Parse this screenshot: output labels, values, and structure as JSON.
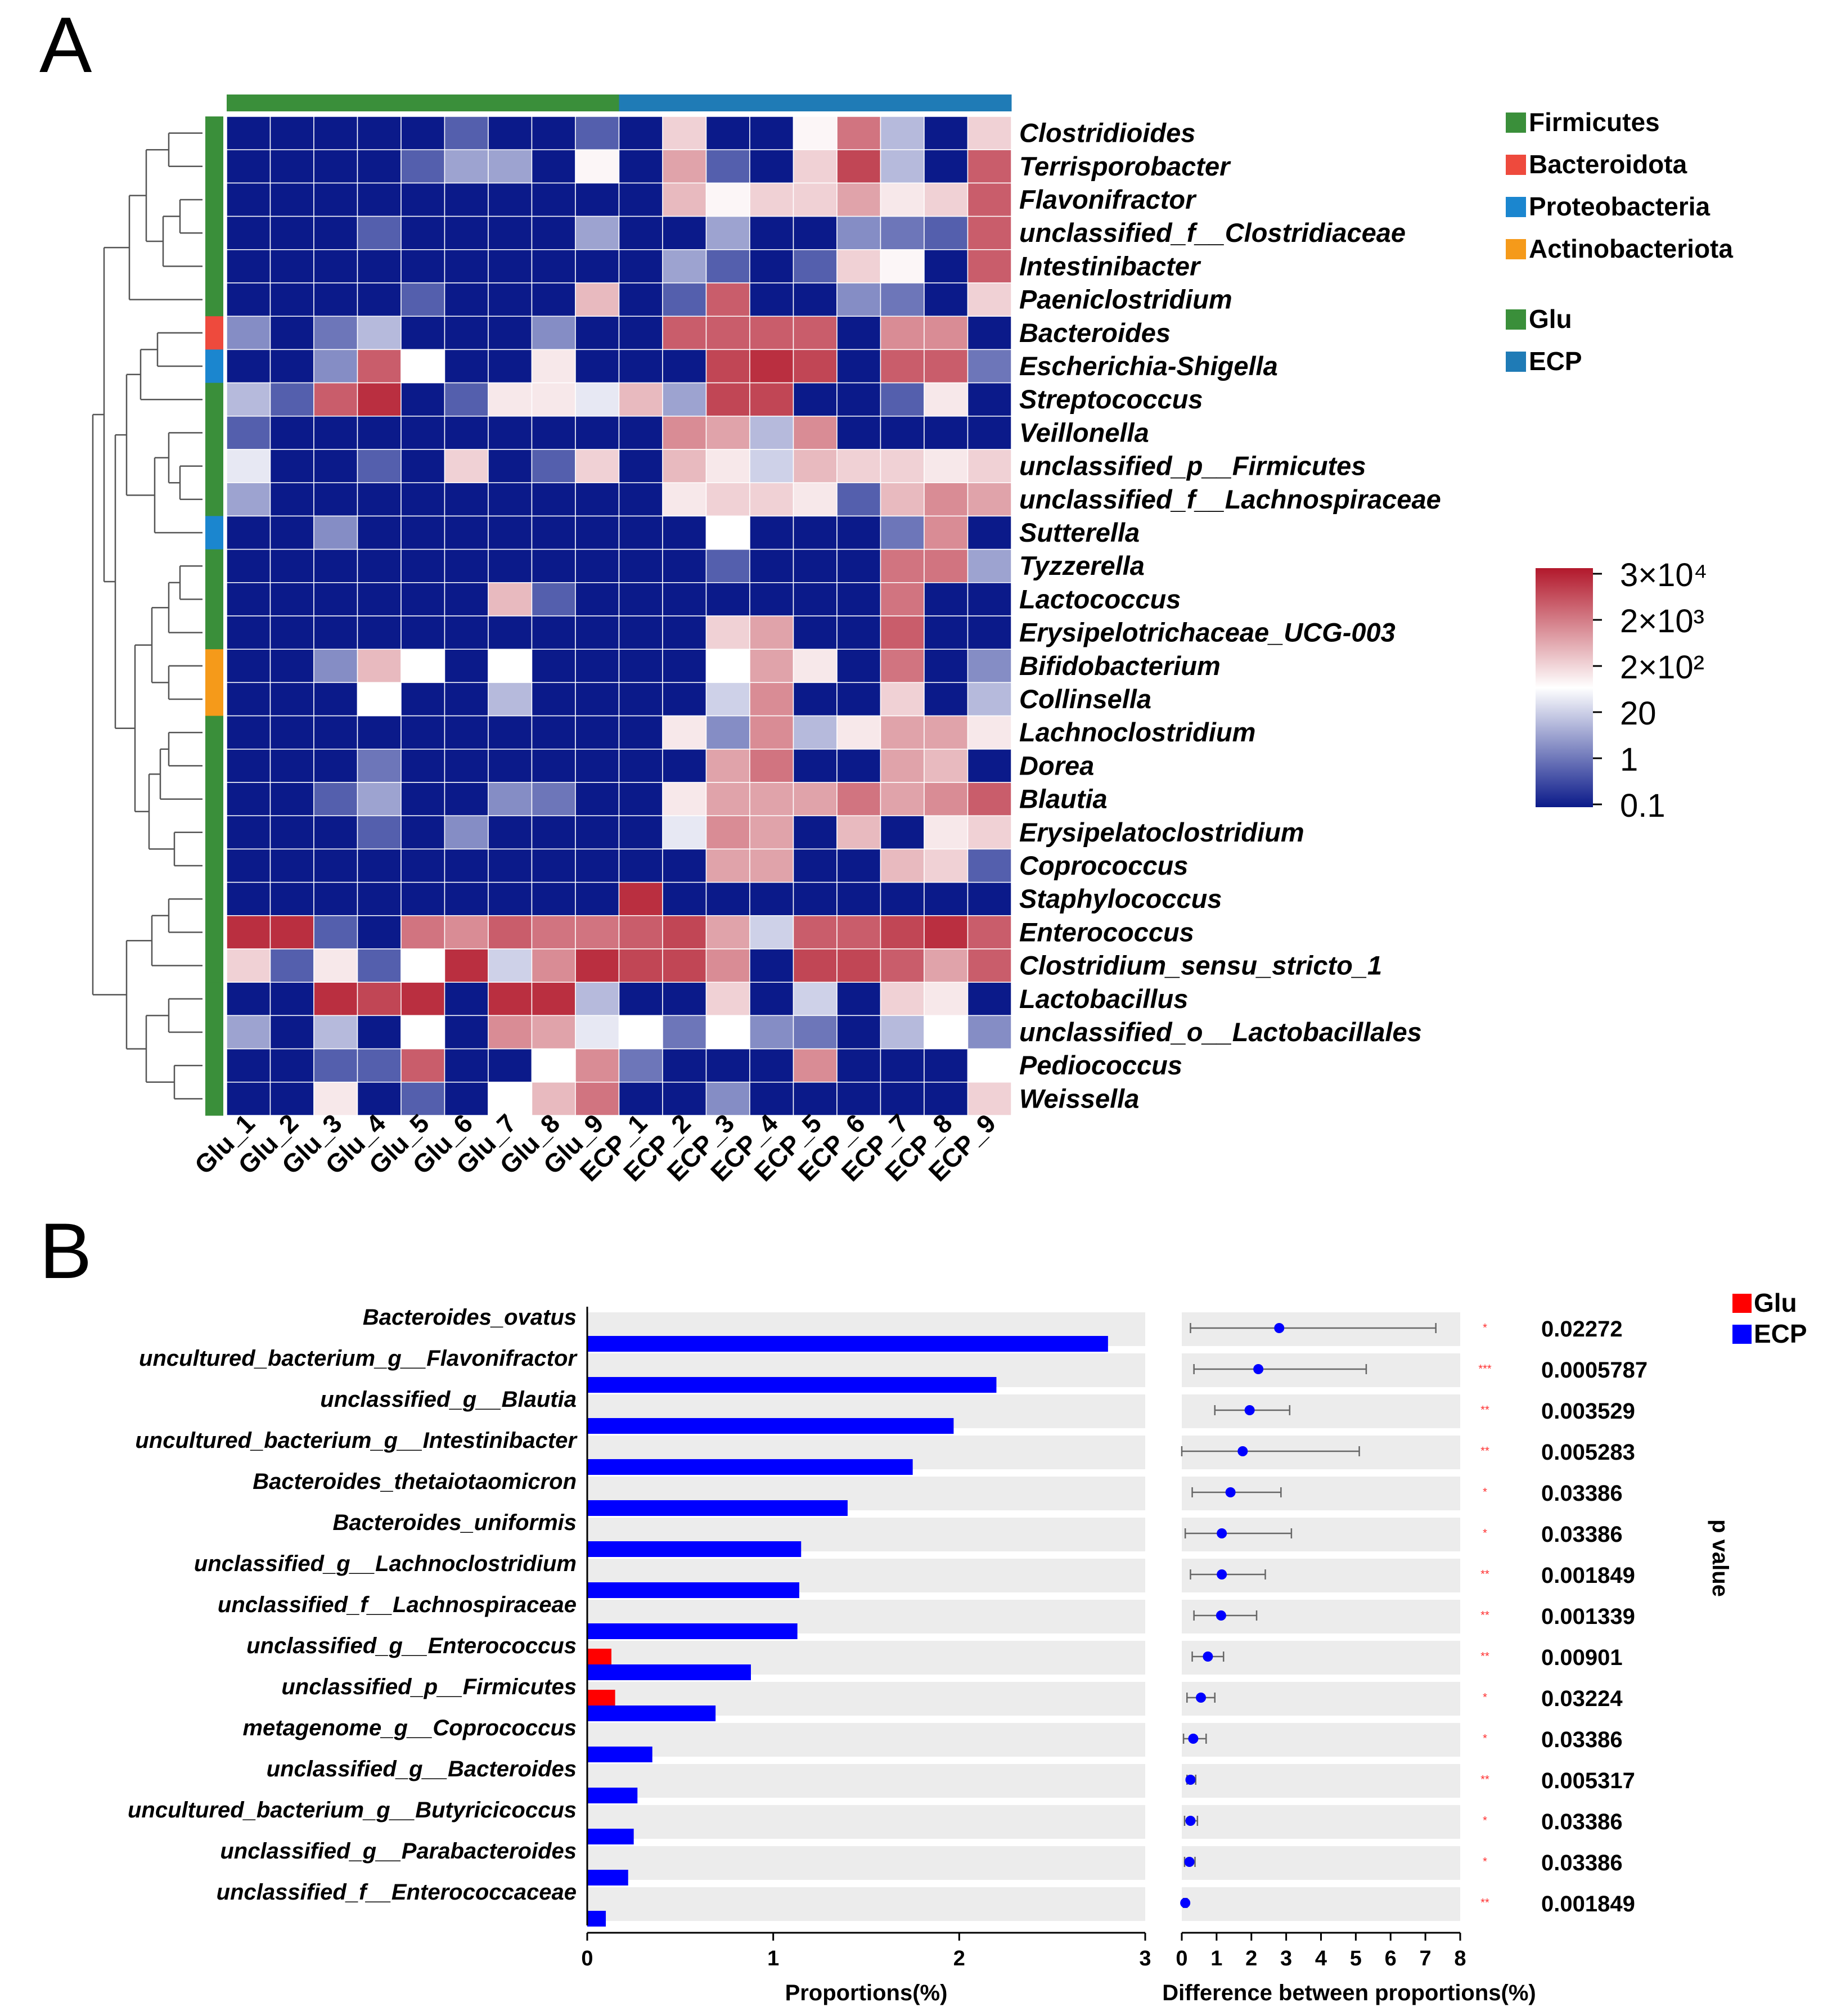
{
  "panel_a": {
    "label": "A",
    "phylum_legend": [
      {
        "name": "Firmicutes",
        "color": "#3a8f3a"
      },
      {
        "name": "Bacteroidota",
        "color": "#ee4a3d"
      },
      {
        "name": "Proteobacteria",
        "color": "#1b86cf"
      },
      {
        "name": "Actinobacteriota",
        "color": "#f59a1a"
      }
    ],
    "group_legend": [
      {
        "name": "Glu",
        "color": "#3a8f3a"
      },
      {
        "name": "ECP",
        "color": "#1f7bb6"
      }
    ],
    "color_scale": {
      "labels": [
        "3×10⁴",
        "2×10³",
        "2×10²",
        "20",
        "1",
        "0.1"
      ],
      "colors": [
        "#b2182b",
        "#ffffff",
        "#0b1a8a"
      ]
    }
  },
  "panel_b": {
    "label": "B",
    "legend": [
      {
        "name": "Glu",
        "color": "#ff0000"
      },
      {
        "name": "ECP",
        "color": "#0000ff"
      }
    ],
    "pvalue_label": "p value"
  },
  "chart_data": [
    {
      "type": "heatmap",
      "title": "",
      "columns": [
        "Glu_1",
        "Glu_2",
        "Glu_3",
        "Glu_4",
        "Glu_5",
        "Glu_6",
        "Glu_7",
        "Glu_8",
        "Glu_9",
        "ECP_1",
        "ECP_2",
        "ECP_3",
        "ECP_4",
        "ECP_5",
        "ECP_6",
        "ECP_7",
        "ECP_8",
        "ECP_9"
      ],
      "column_groups": [
        "Glu",
        "Glu",
        "Glu",
        "Glu",
        "Glu",
        "Glu",
        "Glu",
        "Glu",
        "Glu",
        "ECP",
        "ECP",
        "ECP",
        "ECP",
        "ECP",
        "ECP",
        "ECP",
        "ECP",
        "ECP"
      ],
      "rows": [
        "Clostridioides",
        "Terrisporobacter",
        "Flavonifractor",
        "unclassified_f__Clostridiaceae",
        "Intestinibacter",
        "Paeniclostridium",
        "Bacteroides",
        "Escherichia-Shigella",
        "Streptococcus",
        "Veillonella",
        "unclassified_p__Firmicutes",
        "unclassified_f__Lachnospiraceae",
        "Sutterella",
        "Tyzzerella",
        "Lactococcus",
        "Erysipelotrichaceae_UCG-003",
        "Bifidobacterium",
        "Collinsella",
        "Lachnoclostridium",
        "Dorea",
        "Blautia",
        "Erysipelatoclostridium",
        "Coprococcus",
        "Staphylococcus",
        "Enterococcus",
        "Clostridium_sensu_stricto_1",
        "Lactobacillus",
        "unclassified_o__Lactobacillales",
        "Pediococcus",
        "Weissella"
      ],
      "row_phylum": [
        "Firmicutes",
        "Firmicutes",
        "Firmicutes",
        "Firmicutes",
        "Firmicutes",
        "Firmicutes",
        "Bacteroidota",
        "Proteobacteria",
        "Firmicutes",
        "Firmicutes",
        "Firmicutes",
        "Firmicutes",
        "Proteobacteria",
        "Firmicutes",
        "Firmicutes",
        "Firmicutes",
        "Actinobacteriota",
        "Actinobacteriota",
        "Firmicutes",
        "Firmicutes",
        "Firmicutes",
        "Firmicutes",
        "Firmicutes",
        "Firmicutes",
        "Firmicutes",
        "Firmicutes",
        "Firmicutes",
        "Firmicutes",
        "Firmicutes",
        "Firmicutes"
      ],
      "scale_note": "cell value = color position 0 (0.1, dark blue) .. 0.5 (20, white) .. 1 (3x10^4, dark red)",
      "values": [
        [
          0,
          0,
          0,
          0,
          0,
          0.15,
          0,
          0,
          0.15,
          0,
          0.6,
          0,
          0,
          0.52,
          0.8,
          0.35,
          0,
          0.6
        ],
        [
          0,
          0,
          0,
          0,
          0.15,
          0.3,
          0.3,
          0,
          0.52,
          0,
          0.7,
          0.15,
          0,
          0.6,
          0.9,
          0.35,
          0,
          0.85
        ],
        [
          0,
          0,
          0,
          0,
          0,
          0,
          0,
          0,
          0,
          0,
          0.65,
          0.52,
          0.6,
          0.6,
          0.7,
          0.55,
          0.6,
          0.85
        ],
        [
          0,
          0,
          0,
          0.15,
          0,
          0,
          0,
          0,
          0.3,
          0,
          0,
          0.3,
          0,
          0,
          0.25,
          0.2,
          0.15,
          0.85
        ],
        [
          0,
          0,
          0,
          0,
          0,
          0,
          0,
          0,
          0,
          0,
          0.3,
          0.15,
          0,
          0.15,
          0.6,
          0.52,
          0,
          0.85
        ],
        [
          0,
          0,
          0,
          0,
          0.15,
          0,
          0,
          0,
          0.65,
          0,
          0.15,
          0.85,
          0,
          0,
          0.25,
          0.2,
          0,
          0.6
        ],
        [
          0.25,
          0,
          0.2,
          0.35,
          0,
          0,
          0,
          0.25,
          0,
          0,
          0.85,
          0.85,
          0.85,
          0.85,
          0,
          0.75,
          0.75,
          0
        ],
        [
          0,
          0,
          0.25,
          0.85,
          0.5,
          0,
          0,
          0.55,
          0,
          0,
          0,
          0.9,
          0.95,
          0.9,
          0,
          0.85,
          0.85,
          0.2
        ],
        [
          0.35,
          0.15,
          0.85,
          0.95,
          0,
          0.15,
          0.55,
          0.55,
          0.45,
          0.65,
          0.3,
          0.9,
          0.9,
          0,
          0,
          0.15,
          0.55,
          0
        ],
        [
          0.15,
          0,
          0,
          0,
          0,
          0,
          0,
          0,
          0,
          0,
          0.75,
          0.7,
          0.35,
          0.75,
          0,
          0,
          0,
          0
        ],
        [
          0.45,
          0,
          0,
          0.15,
          0,
          0.6,
          0,
          0.15,
          0.6,
          0,
          0.65,
          0.55,
          0.4,
          0.65,
          0.6,
          0.6,
          0.55,
          0.6
        ],
        [
          0.3,
          0,
          0,
          0,
          0,
          0,
          0,
          0,
          0,
          0,
          0.55,
          0.6,
          0.6,
          0.55,
          0.15,
          0.65,
          0.75,
          0.7
        ],
        [
          0,
          0,
          0.25,
          0,
          0,
          0,
          0,
          0,
          0,
          0,
          0,
          0.5,
          0,
          0,
          0,
          0.2,
          0.75,
          0
        ],
        [
          0,
          0,
          0,
          0,
          0,
          0,
          0,
          0,
          0,
          0,
          0,
          0.15,
          0,
          0,
          0,
          0.8,
          0.8,
          0.3
        ],
        [
          0,
          0,
          0,
          0,
          0,
          0,
          0.65,
          0.15,
          0,
          0,
          0,
          0,
          0,
          0,
          0,
          0.8,
          0,
          0
        ],
        [
          0,
          0,
          0,
          0,
          0,
          0,
          0,
          0,
          0,
          0,
          0,
          0.6,
          0.7,
          0,
          0,
          0.85,
          0,
          0
        ],
        [
          0,
          0,
          0.25,
          0.65,
          0.5,
          0,
          0.5,
          0,
          0,
          0,
          0,
          0.5,
          0.7,
          0.55,
          0,
          0.8,
          0,
          0.25
        ],
        [
          0,
          0,
          0,
          0.5,
          0,
          0,
          0.35,
          0,
          0,
          0,
          0,
          0.4,
          0.75,
          0,
          0,
          0.6,
          0,
          0.35
        ],
        [
          0,
          0,
          0,
          0,
          0,
          0,
          0,
          0,
          0,
          0,
          0.55,
          0.25,
          0.75,
          0.35,
          0.55,
          0.7,
          0.7,
          0.55
        ],
        [
          0,
          0,
          0,
          0.2,
          0,
          0,
          0,
          0,
          0,
          0,
          0,
          0.7,
          0.8,
          0,
          0,
          0.7,
          0.65,
          0
        ],
        [
          0,
          0,
          0.15,
          0.3,
          0,
          0,
          0.25,
          0.2,
          0,
          0,
          0.55,
          0.7,
          0.7,
          0.7,
          0.8,
          0.7,
          0.75,
          0.85
        ],
        [
          0,
          0,
          0,
          0.15,
          0,
          0.25,
          0,
          0,
          0,
          0,
          0.45,
          0.75,
          0.7,
          0,
          0.65,
          0,
          0.55,
          0.6
        ],
        [
          0,
          0,
          0,
          0,
          0,
          0,
          0,
          0,
          0,
          0,
          0,
          0.7,
          0.7,
          0,
          0,
          0.65,
          0.6,
          0.15
        ],
        [
          0,
          0,
          0,
          0,
          0,
          0,
          0,
          0,
          0,
          0.95,
          0,
          0,
          0,
          0,
          0,
          0,
          0,
          0
        ],
        [
          0.95,
          0.95,
          0.15,
          0,
          0.8,
          0.75,
          0.85,
          0.8,
          0.8,
          0.85,
          0.9,
          0.7,
          0.4,
          0.85,
          0.85,
          0.9,
          0.95,
          0.85
        ],
        [
          0.6,
          0.15,
          0.55,
          0.15,
          0.5,
          0.95,
          0.4,
          0.75,
          0.95,
          0.9,
          0.9,
          0.75,
          0,
          0.9,
          0.9,
          0.85,
          0.7,
          0.85
        ],
        [
          0,
          0,
          0.95,
          0.9,
          0.95,
          0,
          0.95,
          0.95,
          0.35,
          0,
          0,
          0.6,
          0,
          0.4,
          0,
          0.6,
          0.55,
          0
        ],
        [
          0.3,
          0,
          0.35,
          0,
          0.5,
          0,
          0.75,
          0.7,
          0.45,
          0.5,
          0.2,
          0.5,
          0.25,
          0.2,
          0,
          0.35,
          0.5,
          0.25
        ],
        [
          0,
          0,
          0.15,
          0.15,
          0.85,
          0,
          0,
          0.5,
          0.75,
          0.2,
          0,
          0,
          0,
          0.75,
          0,
          0,
          0,
          0.5
        ],
        [
          0,
          0,
          0.55,
          0,
          0.15,
          0,
          0.5,
          0.65,
          0.8,
          0,
          0,
          0.25,
          0,
          0,
          0,
          0,
          0,
          0.6
        ]
      ]
    },
    {
      "type": "bar",
      "orientation": "horizontal",
      "title": "",
      "xlabel": "Proportions(%)",
      "xlim": [
        0,
        3
      ],
      "xticks": [
        0,
        1,
        2,
        3
      ],
      "categories": [
        "Bacteroides_ovatus",
        "uncultured_bacterium_g__Flavonifractor",
        "unclassified_g__Blautia",
        "uncultured_bacterium_g__Intestinibacter",
        "Bacteroides_thetaiotaomicron",
        "Bacteroides_uniformis",
        "unclassified_g__Lachnoclostridium",
        "unclassified_f__Lachnospiraceae",
        "unclassified_g__Enterococcus",
        "unclassified_p__Firmicutes",
        "metagenome_g__Coprococcus",
        "unclassified_g__Bacteroides",
        "uncultured_bacterium_g__Butyricicoccus",
        "unclassified_g__Parabacteroides",
        "unclassified_f__Enterococcaceae"
      ],
      "series": [
        {
          "name": "Glu",
          "values": [
            0,
            0,
            0,
            0,
            0,
            0,
            0,
            0,
            0.13,
            0.15,
            0,
            0,
            0,
            0,
            0
          ]
        },
        {
          "name": "ECP",
          "values": [
            2.8,
            2.2,
            1.97,
            1.75,
            1.4,
            1.15,
            1.14,
            1.13,
            0.88,
            0.69,
            0.35,
            0.27,
            0.25,
            0.22,
            0.1
          ]
        }
      ]
    },
    {
      "type": "scatter",
      "title": "",
      "xlabel": "Difference between proportions(%)",
      "xlim": [
        0,
        8
      ],
      "xticks": [
        0,
        1,
        2,
        3,
        4,
        5,
        6,
        7,
        8
      ],
      "categories": [
        "Bacteroides_ovatus",
        "uncultured_bacterium_g__Flavonifractor",
        "unclassified_g__Blautia",
        "uncultured_bacterium_g__Intestinibacter",
        "Bacteroides_thetaiotaomicron",
        "Bacteroides_uniformis",
        "unclassified_g__Lachnoclostridium",
        "unclassified_f__Lachnospiraceae",
        "unclassified_g__Enterococcus",
        "unclassified_p__Firmicutes",
        "metagenome_g__Coprococcus",
        "unclassified_g__Bacteroides",
        "uncultured_bacterium_g__Butyricicoccus",
        "unclassified_g__Parabacteroides",
        "unclassified_f__Enterococcaceae"
      ],
      "difference": [
        2.8,
        2.2,
        1.95,
        1.75,
        1.4,
        1.15,
        1.15,
        1.13,
        0.75,
        0.55,
        0.33,
        0.25,
        0.25,
        0.22,
        0.1
      ],
      "ci_low": [
        0.25,
        0.35,
        0.95,
        0,
        0.3,
        0.1,
        0.25,
        0.35,
        0.3,
        0.15,
        0.05,
        0.15,
        0.08,
        0.08,
        0.05
      ],
      "ci_high": [
        7.3,
        5.3,
        3.1,
        5.1,
        2.85,
        3.15,
        2.4,
        2.15,
        1.2,
        0.95,
        0.7,
        0.4,
        0.45,
        0.38,
        0.15
      ],
      "significance": [
        "*",
        "***",
        "**",
        "**",
        "*",
        "*",
        "**",
        "**",
        "**",
        "*",
        "*",
        "**",
        "*",
        "*",
        "**"
      ],
      "p_values": [
        "0.02272",
        "0.0005787",
        "0.003529",
        "0.005283",
        "0.03386",
        "0.03386",
        "0.001849",
        "0.001339",
        "0.00901",
        "0.03224",
        "0.03386",
        "0.005317",
        "0.03386",
        "0.03386",
        "0.001849"
      ]
    }
  ]
}
